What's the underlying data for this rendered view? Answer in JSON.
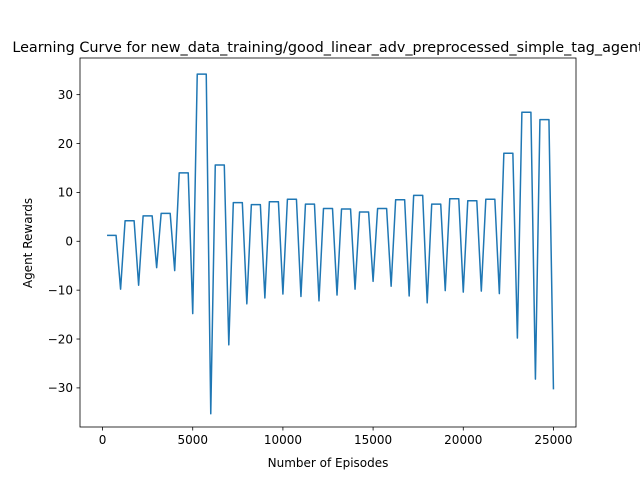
{
  "chart_data": {
    "type": "line",
    "title": "Learning Curve for new_data_training/good_linear_adv_preprocessed_simple_tag_agent",
    "xlabel": "Number of Episodes",
    "ylabel": "Agent Rewards",
    "xlim": [
      -1250,
      26250
    ],
    "ylim": [
      -38,
      37.5
    ],
    "xticks": [
      0,
      5000,
      10000,
      15000,
      20000,
      25000
    ],
    "xtick_labels": [
      "0",
      "5000",
      "10000",
      "15000",
      "20000",
      "25000"
    ],
    "yticks": [
      -30,
      -20,
      -10,
      0,
      10,
      20,
      30
    ],
    "ytick_labels": [
      "−30",
      "−20",
      "−10",
      "0",
      "10",
      "20",
      "30"
    ],
    "grid": false,
    "series": [
      {
        "color": "#1f77b4",
        "x": [
          250,
          750,
          1000,
          1250,
          1750,
          2000,
          2250,
          2750,
          3000,
          3250,
          3750,
          4000,
          4250,
          4750,
          5000,
          5250,
          5750,
          6000,
          6250,
          6750,
          7000,
          7250,
          7750,
          8000,
          8250,
          8750,
          9000,
          9250,
          9750,
          10000,
          10250,
          10750,
          11000,
          11250,
          11750,
          12000,
          12250,
          12750,
          13000,
          13250,
          13750,
          14000,
          14250,
          14750,
          15000,
          15250,
          15750,
          16000,
          16250,
          16750,
          17000,
          17250,
          17750,
          18000,
          18250,
          18750,
          19000,
          19250,
          19750,
          20000,
          20250,
          20750,
          21000,
          21250,
          21750,
          22000,
          22250,
          22750,
          23000,
          23250,
          23750,
          24000,
          24250,
          24750,
          25000
        ],
        "y": [
          1.2,
          1.2,
          -9.8,
          4.2,
          4.2,
          -9.0,
          5.2,
          5.2,
          -5.4,
          5.7,
          5.7,
          -6.0,
          14.0,
          14.0,
          -14.8,
          34.2,
          34.2,
          -35.3,
          15.6,
          15.6,
          -21.2,
          7.9,
          7.9,
          -12.8,
          7.5,
          7.5,
          -11.6,
          8.1,
          8.1,
          -10.8,
          8.6,
          8.6,
          -11.3,
          7.6,
          7.6,
          -12.2,
          6.7,
          6.7,
          -11.0,
          6.6,
          6.6,
          -9.8,
          6.0,
          6.0,
          -8.2,
          6.7,
          6.7,
          -9.2,
          8.5,
          8.5,
          -11.2,
          9.4,
          9.4,
          -12.6,
          7.6,
          7.6,
          -10.1,
          8.7,
          8.7,
          -10.4,
          8.3,
          8.3,
          -10.2,
          8.6,
          8.6,
          -10.7,
          18.0,
          18.0,
          -19.8,
          26.4,
          26.4,
          -28.2,
          24.9,
          24.9,
          -30.3
        ]
      }
    ]
  }
}
